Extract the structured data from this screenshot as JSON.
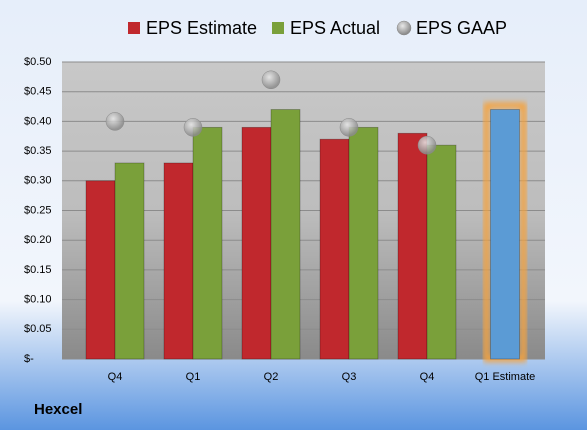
{
  "chart_data": {
    "type": "bar",
    "footer": "Hexcel",
    "categories": [
      "Q4",
      "Q1",
      "Q2",
      "Q3",
      "Q4",
      "Q1 Estimate"
    ],
    "series": [
      {
        "name": "EPS Estimate",
        "color": "#c0282d",
        "colors": [
          "#c0282d",
          "#c0282d",
          "#c0282d",
          "#c0282d",
          "#c0282d",
          "#5b9bd5"
        ],
        "values": [
          0.3,
          0.33,
          0.39,
          0.37,
          0.38,
          0.42
        ]
      },
      {
        "name": "EPS Actual",
        "color": "#7aa03a",
        "values": [
          0.33,
          0.39,
          0.42,
          0.39,
          0.36,
          null
        ]
      },
      {
        "name": "EPS GAAP",
        "color": "#a6a6a6",
        "type": "scatter",
        "values": [
          0.4,
          0.39,
          0.47,
          0.39,
          0.36,
          null
        ]
      }
    ],
    "ylim": [
      0,
      0.5
    ],
    "yticks": [
      {
        "value": 0,
        "label": "$-"
      },
      {
        "value": 0.05,
        "label": "$0.05"
      },
      {
        "value": 0.1,
        "label": "$0.10"
      },
      {
        "value": 0.15,
        "label": "$0.15"
      },
      {
        "value": 0.2,
        "label": "$0.20"
      },
      {
        "value": 0.25,
        "label": "$0.25"
      },
      {
        "value": 0.3,
        "label": "$0.30"
      },
      {
        "value": 0.35,
        "label": "$0.35"
      },
      {
        "value": 0.4,
        "label": "$0.40"
      },
      {
        "value": 0.45,
        "label": "$0.45"
      },
      {
        "value": 0.5,
        "label": "$0.50"
      }
    ],
    "grid": true
  }
}
